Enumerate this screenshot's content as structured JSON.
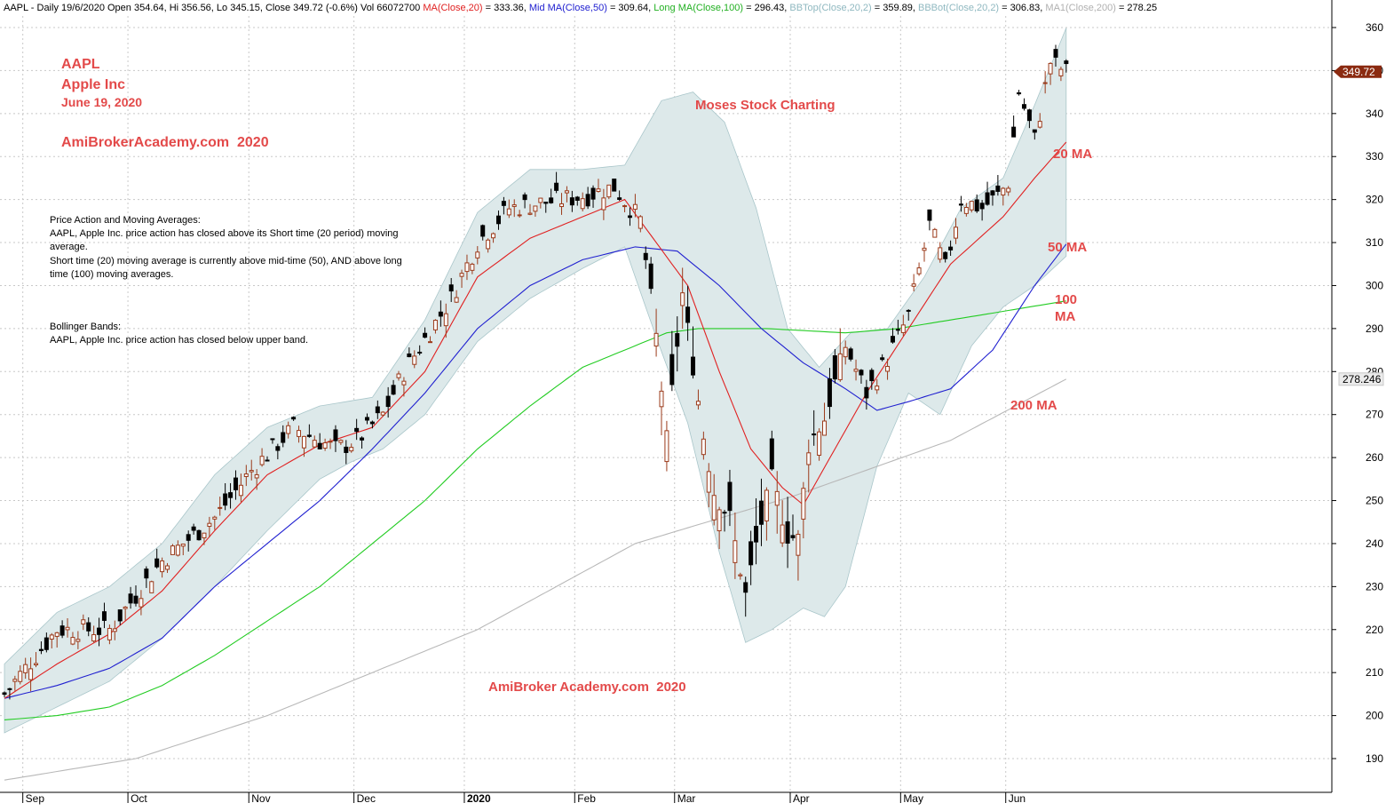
{
  "header": {
    "segments": [
      {
        "text": "AAPL - Daily 19/6/2020 Open 354.64, Hi 356.56, Lo 345.15, Close 349.72 (-0.6%) Vol 66072700 ",
        "color": "#000000"
      },
      {
        "text": "MA(Close,20)",
        "color": "#e02020"
      },
      {
        "text": " = 333.36, ",
        "color": "#000000"
      },
      {
        "text": "Mid MA(Close,50)",
        "color": "#2020d0"
      },
      {
        "text": " = 309.64, ",
        "color": "#000000"
      },
      {
        "text": "Long MA(Close,100)",
        "color": "#22b022"
      },
      {
        "text": " = 296.43, ",
        "color": "#000000"
      },
      {
        "text": "BBTop(Close,20,2)",
        "color": "#8fb8c0"
      },
      {
        "text": " = 359.89, ",
        "color": "#000000"
      },
      {
        "text": "BBBot(Close,20,2)",
        "color": "#8fb8c0"
      },
      {
        "text": " = 306.83, ",
        "color": "#000000"
      },
      {
        "text": "MA1(Close,200)",
        "color": "#b0b0b0"
      },
      {
        "text": " = 278.25",
        "color": "#000000"
      }
    ]
  },
  "annotations": {
    "symbol": "AAPL",
    "company": "Apple Inc",
    "date": "June 19, 2020",
    "site": "AmiBrokerAcademy.com  2020",
    "watermark_top": "Moses Stock Charting",
    "watermark_bottom": "AmiBroker Academy.com  2020",
    "ma20_label": "20 MA",
    "ma50_label": "50 MA",
    "ma100_label_line1": "100",
    "ma100_label_line2": "MA",
    "ma200_label": "200 MA"
  },
  "notes": {
    "pa_title": "Price Action and Moving Averages:",
    "pa_line1": "AAPL, Apple Inc. price action has closed above its Short time (20 period) moving",
    "pa_line2": "average.",
    "pa_line3": "Short time (20) moving average is currently above mid-time (50), AND above long",
    "pa_line4": "time (100) moving averages.",
    "bb_title": "Bollinger Bands:",
    "bb_line1": "AAPL, Apple Inc. price action has closed below upper band."
  },
  "chart_data": {
    "type": "candlestick",
    "colors": {
      "ma20": "#e02020",
      "ma50": "#2020d0",
      "ma100": "#22cc22",
      "ma200": "#b8b8b8",
      "band_fill": "#dde9ea",
      "band_edge": "#a9c6ca",
      "up": "#9b3a1a",
      "down": "#000000",
      "last_price_bg": "#8b2a10"
    },
    "y_ticks": [
      190,
      200,
      210,
      220,
      230,
      240,
      250,
      260,
      270,
      280,
      290,
      300,
      310,
      320,
      330,
      340,
      350,
      360
    ],
    "ylim": [
      183.5,
      362.5
    ],
    "x_labels": [
      {
        "label": "Sep",
        "index": 4
      },
      {
        "label": "Oct",
        "index": 24
      },
      {
        "label": "Nov",
        "index": 47
      },
      {
        "label": "Dec",
        "index": 67
      },
      {
        "label": "2020",
        "index": 88
      },
      {
        "label": "Feb",
        "index": 109
      },
      {
        "label": "Mar",
        "index": 128
      },
      {
        "label": "Apr",
        "index": 150
      },
      {
        "label": "May",
        "index": 171
      },
      {
        "label": "Jun",
        "index": 191
      }
    ],
    "last_price": "349.72",
    "ma200_tag": "278.246",
    "key_closes": [
      {
        "i": 0,
        "c": 205
      },
      {
        "i": 10,
        "c": 220
      },
      {
        "i": 20,
        "c": 220
      },
      {
        "i": 30,
        "c": 236
      },
      {
        "i": 40,
        "c": 246
      },
      {
        "i": 47,
        "c": 257
      },
      {
        "i": 55,
        "c": 267
      },
      {
        "i": 63,
        "c": 262
      },
      {
        "i": 67,
        "c": 264
      },
      {
        "i": 72,
        "c": 270
      },
      {
        "i": 76,
        "c": 280
      },
      {
        "i": 85,
        "c": 297
      },
      {
        "i": 90,
        "c": 310
      },
      {
        "i": 96,
        "c": 318
      },
      {
        "i": 101,
        "c": 319
      },
      {
        "i": 106,
        "c": 320
      },
      {
        "i": 111,
        "c": 321
      },
      {
        "i": 116,
        "c": 323
      },
      {
        "i": 121,
        "c": 315
      },
      {
        "i": 124,
        "c": 288
      },
      {
        "i": 126,
        "c": 264
      },
      {
        "i": 129,
        "c": 298
      },
      {
        "i": 133,
        "c": 265
      },
      {
        "i": 135,
        "c": 252
      },
      {
        "i": 138,
        "c": 246
      },
      {
        "i": 141,
        "c": 228
      },
      {
        "i": 143,
        "c": 240
      },
      {
        "i": 146,
        "c": 255
      },
      {
        "i": 149,
        "c": 242
      },
      {
        "i": 151,
        "c": 241
      },
      {
        "i": 153,
        "c": 263
      },
      {
        "i": 156,
        "c": 269
      },
      {
        "i": 160,
        "c": 286
      },
      {
        "i": 164,
        "c": 275
      },
      {
        "i": 168,
        "c": 283
      },
      {
        "i": 172,
        "c": 293
      },
      {
        "i": 176,
        "c": 314
      },
      {
        "i": 179,
        "c": 304
      },
      {
        "i": 182,
        "c": 320
      },
      {
        "i": 186,
        "c": 318
      },
      {
        "i": 189,
        "c": 321
      },
      {
        "i": 191,
        "c": 324
      },
      {
        "i": 193,
        "c": 345
      },
      {
        "i": 196,
        "c": 334
      },
      {
        "i": 199,
        "c": 352
      },
      {
        "i": 202,
        "c": 349.72
      }
    ],
    "ma20_points": [
      {
        "i": 0,
        "v": 204
      },
      {
        "i": 10,
        "v": 212
      },
      {
        "i": 20,
        "v": 219
      },
      {
        "i": 30,
        "v": 229
      },
      {
        "i": 40,
        "v": 243
      },
      {
        "i": 50,
        "v": 256
      },
      {
        "i": 60,
        "v": 263
      },
      {
        "i": 70,
        "v": 267
      },
      {
        "i": 80,
        "v": 280
      },
      {
        "i": 90,
        "v": 302
      },
      {
        "i": 100,
        "v": 311
      },
      {
        "i": 110,
        "v": 316
      },
      {
        "i": 118,
        "v": 320
      },
      {
        "i": 124,
        "v": 310
      },
      {
        "i": 130,
        "v": 300
      },
      {
        "i": 136,
        "v": 280
      },
      {
        "i": 142,
        "v": 262
      },
      {
        "i": 148,
        "v": 253
      },
      {
        "i": 152,
        "v": 249
      },
      {
        "i": 158,
        "v": 262
      },
      {
        "i": 164,
        "v": 275
      },
      {
        "i": 172,
        "v": 290
      },
      {
        "i": 180,
        "v": 305
      },
      {
        "i": 190,
        "v": 316
      },
      {
        "i": 196,
        "v": 325
      },
      {
        "i": 202,
        "v": 333.36
      }
    ],
    "ma50_points": [
      {
        "i": 0,
        "v": 204
      },
      {
        "i": 10,
        "v": 207
      },
      {
        "i": 20,
        "v": 211
      },
      {
        "i": 30,
        "v": 218
      },
      {
        "i": 40,
        "v": 230
      },
      {
        "i": 50,
        "v": 240
      },
      {
        "i": 60,
        "v": 250
      },
      {
        "i": 70,
        "v": 262
      },
      {
        "i": 80,
        "v": 275
      },
      {
        "i": 90,
        "v": 290
      },
      {
        "i": 100,
        "v": 300
      },
      {
        "i": 110,
        "v": 306
      },
      {
        "i": 120,
        "v": 309
      },
      {
        "i": 128,
        "v": 308
      },
      {
        "i": 136,
        "v": 300
      },
      {
        "i": 144,
        "v": 290
      },
      {
        "i": 152,
        "v": 282
      },
      {
        "i": 160,
        "v": 276
      },
      {
        "i": 166,
        "v": 271
      },
      {
        "i": 172,
        "v": 273
      },
      {
        "i": 180,
        "v": 276
      },
      {
        "i": 188,
        "v": 285
      },
      {
        "i": 196,
        "v": 300
      },
      {
        "i": 202,
        "v": 309.64
      }
    ],
    "ma100_points": [
      {
        "i": 0,
        "v": 199
      },
      {
        "i": 10,
        "v": 200
      },
      {
        "i": 20,
        "v": 202
      },
      {
        "i": 30,
        "v": 207
      },
      {
        "i": 40,
        "v": 214
      },
      {
        "i": 50,
        "v": 222
      },
      {
        "i": 60,
        "v": 230
      },
      {
        "i": 70,
        "v": 240
      },
      {
        "i": 80,
        "v": 250
      },
      {
        "i": 90,
        "v": 262
      },
      {
        "i": 100,
        "v": 272
      },
      {
        "i": 110,
        "v": 281
      },
      {
        "i": 120,
        "v": 286
      },
      {
        "i": 126,
        "v": 289
      },
      {
        "i": 132,
        "v": 290
      },
      {
        "i": 145,
        "v": 290
      },
      {
        "i": 160,
        "v": 289
      },
      {
        "i": 170,
        "v": 290
      },
      {
        "i": 180,
        "v": 292
      },
      {
        "i": 190,
        "v": 294
      },
      {
        "i": 202,
        "v": 296.43
      }
    ],
    "ma200_points": [
      {
        "i": 0,
        "v": 185
      },
      {
        "i": 25,
        "v": 190
      },
      {
        "i": 50,
        "v": 200
      },
      {
        "i": 90,
        "v": 220
      },
      {
        "i": 120,
        "v": 240
      },
      {
        "i": 150,
        "v": 251
      },
      {
        "i": 180,
        "v": 264
      },
      {
        "i": 202,
        "v": 278.25
      }
    ],
    "bb_upper_points": [
      {
        "i": 0,
        "v": 212
      },
      {
        "i": 10,
        "v": 224
      },
      {
        "i": 20,
        "v": 230
      },
      {
        "i": 30,
        "v": 240
      },
      {
        "i": 40,
        "v": 256
      },
      {
        "i": 50,
        "v": 267
      },
      {
        "i": 60,
        "v": 272
      },
      {
        "i": 70,
        "v": 274
      },
      {
        "i": 80,
        "v": 292
      },
      {
        "i": 90,
        "v": 317
      },
      {
        "i": 100,
        "v": 327
      },
      {
        "i": 110,
        "v": 327
      },
      {
        "i": 118,
        "v": 328
      },
      {
        "i": 125,
        "v": 343
      },
      {
        "i": 131,
        "v": 345
      },
      {
        "i": 137,
        "v": 338
      },
      {
        "i": 143,
        "v": 318
      },
      {
        "i": 149,
        "v": 290
      },
      {
        "i": 155,
        "v": 281
      },
      {
        "i": 161,
        "v": 289
      },
      {
        "i": 168,
        "v": 290
      },
      {
        "i": 175,
        "v": 302
      },
      {
        "i": 182,
        "v": 318
      },
      {
        "i": 190,
        "v": 325
      },
      {
        "i": 196,
        "v": 342
      },
      {
        "i": 202,
        "v": 359.89
      }
    ],
    "bb_lower_points": [
      {
        "i": 0,
        "v": 196
      },
      {
        "i": 10,
        "v": 202
      },
      {
        "i": 20,
        "v": 208
      },
      {
        "i": 30,
        "v": 218
      },
      {
        "i": 40,
        "v": 230
      },
      {
        "i": 50,
        "v": 243
      },
      {
        "i": 60,
        "v": 255
      },
      {
        "i": 66,
        "v": 259
      },
      {
        "i": 72,
        "v": 262
      },
      {
        "i": 80,
        "v": 270
      },
      {
        "i": 90,
        "v": 287
      },
      {
        "i": 100,
        "v": 297
      },
      {
        "i": 110,
        "v": 304
      },
      {
        "i": 118,
        "v": 309
      },
      {
        "i": 124,
        "v": 288
      },
      {
        "i": 130,
        "v": 268
      },
      {
        "i": 136,
        "v": 238
      },
      {
        "i": 141,
        "v": 217
      },
      {
        "i": 146,
        "v": 220
      },
      {
        "i": 152,
        "v": 225
      },
      {
        "i": 156,
        "v": 223
      },
      {
        "i": 160,
        "v": 230
      },
      {
        "i": 166,
        "v": 258
      },
      {
        "i": 172,
        "v": 275
      },
      {
        "i": 178,
        "v": 270
      },
      {
        "i": 184,
        "v": 286
      },
      {
        "i": 190,
        "v": 295
      },
      {
        "i": 196,
        "v": 300
      },
      {
        "i": 202,
        "v": 306.83
      }
    ]
  }
}
